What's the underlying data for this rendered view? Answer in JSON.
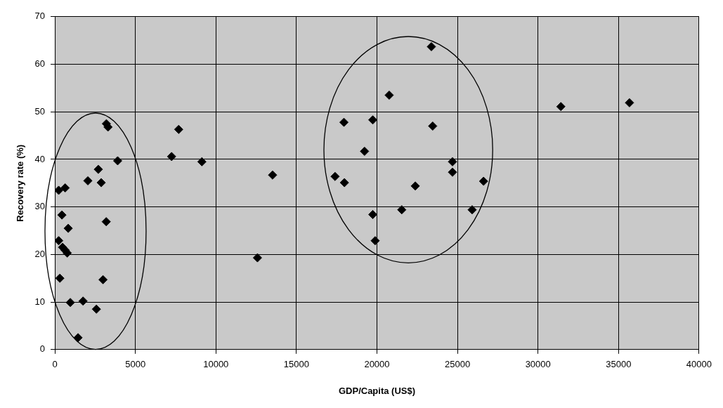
{
  "chart_data": {
    "type": "scatter",
    "xlabel": "GDP/Capita (US$)",
    "ylabel": "Recovery rate (%)",
    "marker": "diamond",
    "grid": true,
    "legend": false,
    "xlim": [
      0,
      40000
    ],
    "xticks": [
      0,
      5000,
      10000,
      15000,
      20000,
      25000,
      30000,
      35000,
      40000
    ],
    "ylim": [
      0,
      70
    ],
    "yticks": [
      0,
      10,
      20,
      30,
      40,
      50,
      60,
      70
    ],
    "series": [
      {
        "color": "#000000",
        "x": [
          3200,
          3300,
          3900,
          2050,
          2700,
          2880,
          240,
          640,
          440,
          830,
          3190,
          240,
          480,
          640,
          770,
          310,
          2990,
          960,
          1750,
          2580,
          1440,
          7690,
          7250,
          9130,
          12580,
          13520,
          17400,
          17980,
          17950,
          19740,
          20760,
          23380,
          23460,
          19230,
          24690,
          24690,
          26620,
          22380,
          21540,
          19740,
          25910,
          19890,
          31420,
          35680
        ],
        "values": [
          47.5,
          46.8,
          39.7,
          35.5,
          37.9,
          35.1,
          33.5,
          34,
          28.3,
          25.5,
          26.9,
          22.9,
          21.5,
          20.9,
          20.3,
          15,
          14.7,
          9.9,
          10.2,
          8.5,
          2.5,
          46.3,
          40.6,
          39.5,
          19.3,
          36.7,
          36.4,
          35.1,
          47.8,
          48.3,
          53.5,
          63.7,
          47,
          41.7,
          39.5,
          37.3,
          35.4,
          34.4,
          29.4,
          28.4,
          29.4,
          22.9,
          51.1,
          51.9
        ]
      }
    ]
  }
}
